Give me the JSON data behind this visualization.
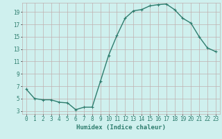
{
  "x": [
    0,
    1,
    2,
    3,
    4,
    5,
    6,
    7,
    8,
    9,
    10,
    11,
    12,
    13,
    14,
    15,
    16,
    17,
    18,
    19,
    20,
    21,
    22,
    23
  ],
  "y": [
    6.5,
    5.0,
    4.8,
    4.8,
    4.4,
    4.3,
    3.2,
    3.6,
    3.6,
    7.8,
    12.0,
    15.2,
    18.0,
    19.2,
    19.4,
    20.0,
    20.2,
    20.3,
    19.4,
    18.0,
    17.2,
    15.0,
    13.2,
    12.6
  ],
  "line_color": "#2e7d6e",
  "marker": "+",
  "marker_size": 3,
  "marker_edge_width": 0.8,
  "bg_color": "#cff0ee",
  "grid_color": "#c0b0b0",
  "xlabel": "Humidex (Indice chaleur)",
  "xlim": [
    -0.5,
    23.5
  ],
  "ylim": [
    2.5,
    20.5
  ],
  "yticks": [
    3,
    5,
    7,
    9,
    11,
    13,
    15,
    17,
    19
  ],
  "xticks": [
    0,
    1,
    2,
    3,
    4,
    5,
    6,
    7,
    8,
    9,
    10,
    11,
    12,
    13,
    14,
    15,
    16,
    17,
    18,
    19,
    20,
    21,
    22,
    23
  ],
  "tick_label_fontsize": 5.5,
  "xlabel_fontsize": 6.5,
  "line_width": 1.0
}
